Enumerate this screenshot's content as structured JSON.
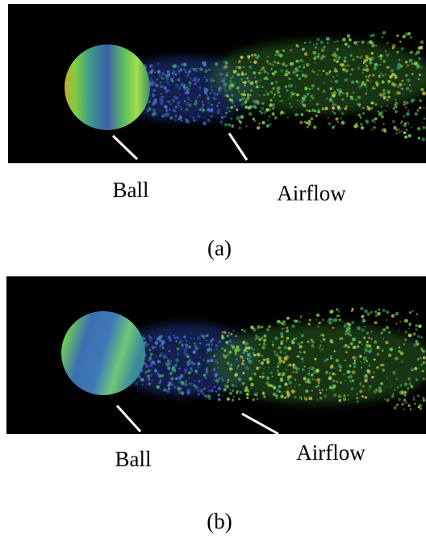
{
  "panels": [
    {
      "labels": [
        "Ball",
        "Airflow"
      ],
      "caption": "(a)"
    },
    {
      "labels": [
        "Ball",
        "Airflow"
      ],
      "caption": "(b)"
    }
  ]
}
